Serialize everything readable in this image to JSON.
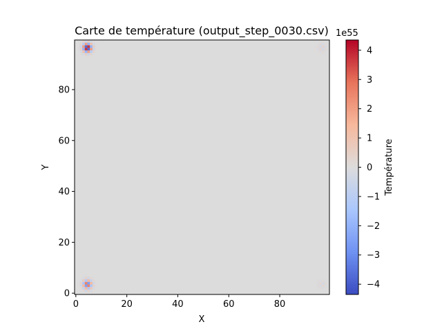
{
  "chart_data": {
    "type": "heatmap",
    "title": "Carte de température (output_step_0030.csv)",
    "xlabel": "X",
    "ylabel": "Y",
    "colorbar_label": "Température",
    "colorbar_offset_label": "1e55",
    "colormap": "coolwarm",
    "colormap_stops": [
      "#3b4cc0",
      "#6f92f3",
      "#aac7fd",
      "#dddcdc",
      "#f7b89c",
      "#e7745b",
      "#b40426"
    ],
    "background_color": "#dcdcdc",
    "grid": false,
    "xlim": [
      -0.5,
      99.5
    ],
    "ylim": [
      -0.5,
      99.5
    ],
    "x_ticks": [
      0,
      20,
      40,
      60,
      80
    ],
    "x_tick_labels": [
      "0",
      "20",
      "40",
      "60",
      "80"
    ],
    "y_ticks": [
      0,
      20,
      40,
      60,
      80
    ],
    "y_tick_labels": [
      "0",
      "20",
      "40",
      "60",
      "80"
    ],
    "colorbar_range": [
      -4.35,
      4.35
    ],
    "colorbar_ticks": [
      -4,
      -3,
      -2,
      -1,
      0,
      1,
      2,
      3,
      4
    ],
    "colorbar_tick_labels": [
      "−4",
      "−3",
      "−2",
      "−1",
      "0",
      "1",
      "2",
      "3",
      "4"
    ],
    "hotspots": [
      {
        "name": "top-left",
        "cx": 4.5,
        "cy": 96.5,
        "peak": 4.35,
        "scale": 1.0
      },
      {
        "name": "bottom-left",
        "cx": 4.5,
        "cy": 3.5,
        "peak": 3.0,
        "scale": 1.0
      },
      {
        "name": "top-right",
        "cx": 96.5,
        "cy": 96.5,
        "peak": 0.4,
        "scale": 1.0
      },
      {
        "name": "bottom-right",
        "cx": 96.5,
        "cy": 3.5,
        "peak": 0.3,
        "scale": 1.0
      }
    ]
  }
}
